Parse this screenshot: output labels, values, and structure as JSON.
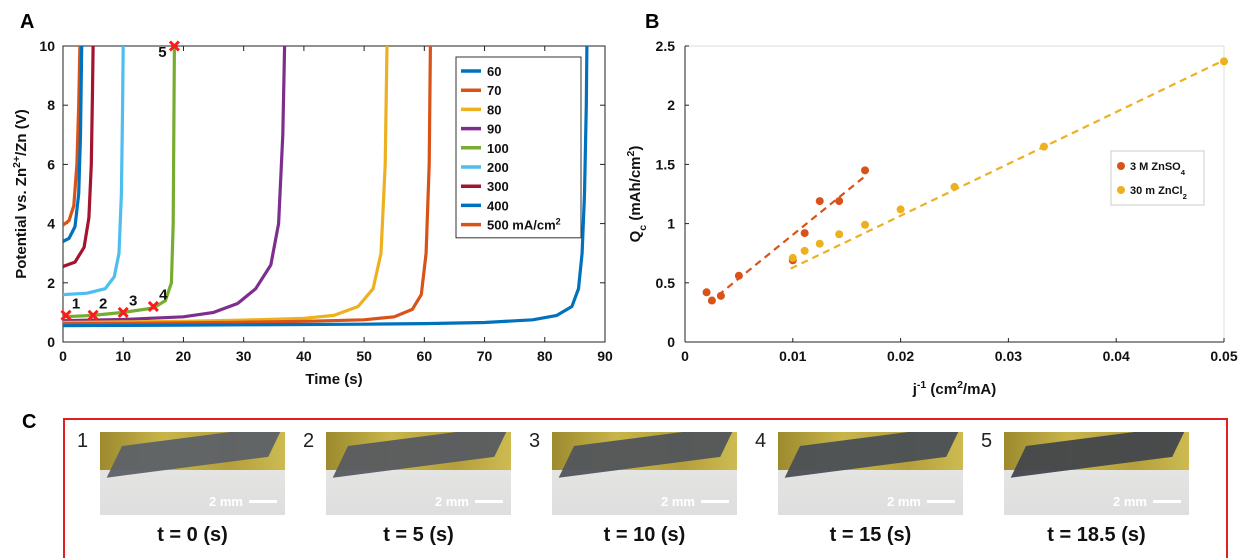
{
  "panel_labels": [
    "A",
    "B",
    "C"
  ],
  "chart_data": [
    {
      "type": "line",
      "panel": "A",
      "xlabel": "Time (s)",
      "ylabel_parts": [
        "Potential vs. Zn",
        "2+",
        "/Zn (V)"
      ],
      "xlim": [
        0,
        90
      ],
      "ylim": [
        0,
        10
      ],
      "xticks": [
        0,
        10,
        20,
        30,
        40,
        50,
        60,
        70,
        80,
        90
      ],
      "yticks": [
        0,
        2,
        4,
        6,
        8,
        10
      ],
      "grid": false,
      "legend_position": "top-right",
      "legend_unit_parts": [
        "500 mA/cm",
        "2"
      ],
      "series": [
        {
          "name": "60",
          "color": "#0072BD",
          "points": [
            [
              0,
              0.55
            ],
            [
              10,
              0.56
            ],
            [
              20,
              0.57
            ],
            [
              30,
              0.58
            ],
            [
              40,
              0.59
            ],
            [
              50,
              0.6
            ],
            [
              60,
              0.62
            ],
            [
              70,
              0.66
            ],
            [
              78,
              0.75
            ],
            [
              82,
              0.9
            ],
            [
              84.5,
              1.2
            ],
            [
              85.6,
              1.8
            ],
            [
              86.2,
              3
            ],
            [
              86.6,
              5
            ],
            [
              86.9,
              8
            ],
            [
              87,
              10
            ]
          ]
        },
        {
          "name": "70",
          "color": "#D95319",
          "points": [
            [
              0,
              0.62
            ],
            [
              10,
              0.63
            ],
            [
              20,
              0.65
            ],
            [
              30,
              0.67
            ],
            [
              40,
              0.7
            ],
            [
              50,
              0.75
            ],
            [
              55,
              0.85
            ],
            [
              58,
              1.1
            ],
            [
              59.5,
              1.6
            ],
            [
              60.3,
              3
            ],
            [
              60.8,
              6
            ],
            [
              61,
              10
            ]
          ]
        },
        {
          "name": "80",
          "color": "#EDB120",
          "points": [
            [
              0,
              0.66
            ],
            [
              10,
              0.68
            ],
            [
              20,
              0.7
            ],
            [
              30,
              0.74
            ],
            [
              40,
              0.8
            ],
            [
              45,
              0.9
            ],
            [
              49,
              1.2
            ],
            [
              51.5,
              1.8
            ],
            [
              52.8,
              3
            ],
            [
              53.5,
              6
            ],
            [
              53.8,
              10
            ]
          ]
        },
        {
          "name": "90",
          "color": "#7E2F8E",
          "points": [
            [
              0,
              0.72
            ],
            [
              10,
              0.76
            ],
            [
              20,
              0.85
            ],
            [
              25,
              1
            ],
            [
              29,
              1.3
            ],
            [
              32,
              1.8
            ],
            [
              34.5,
              2.6
            ],
            [
              35.8,
              4
            ],
            [
              36.5,
              7
            ],
            [
              36.8,
              10
            ]
          ]
        },
        {
          "name": "100",
          "color": "#77AC30",
          "points": [
            [
              0,
              0.85
            ],
            [
              5,
              0.9
            ],
            [
              10,
              1.0
            ],
            [
              15,
              1.15
            ],
            [
              17,
              1.4
            ],
            [
              18,
              2
            ],
            [
              18.3,
              4
            ],
            [
              18.5,
              10
            ]
          ]
        },
        {
          "name": "200",
          "color": "#4DBEEE",
          "points": [
            [
              0,
              1.6
            ],
            [
              4,
              1.65
            ],
            [
              7,
              1.8
            ],
            [
              8.5,
              2.2
            ],
            [
              9.3,
              3
            ],
            [
              9.7,
              5
            ],
            [
              9.9,
              8
            ],
            [
              10,
              10
            ]
          ]
        },
        {
          "name": "300",
          "color": "#A2142F",
          "points": [
            [
              0,
              2.55
            ],
            [
              2,
              2.7
            ],
            [
              3.5,
              3.2
            ],
            [
              4.3,
              4.2
            ],
            [
              4.7,
              6
            ],
            [
              4.9,
              8.5
            ],
            [
              5,
              10
            ]
          ]
        },
        {
          "name": "400",
          "color": "#0072BD",
          "points": [
            [
              0,
              3.4
            ],
            [
              1,
              3.5
            ],
            [
              2,
              3.9
            ],
            [
              2.6,
              5
            ],
            [
              2.9,
              7
            ],
            [
              3.1,
              10
            ]
          ]
        },
        {
          "name": "500",
          "color": "#D95319",
          "points": [
            [
              0,
              3.95
            ],
            [
              1,
              4.1
            ],
            [
              1.8,
              4.6
            ],
            [
              2.3,
              6
            ],
            [
              2.6,
              8
            ],
            [
              2.8,
              10
            ]
          ]
        }
      ],
      "markers": [
        {
          "label": "1",
          "x": 0.5,
          "y": 0.9
        },
        {
          "label": "2",
          "x": 5,
          "y": 0.9
        },
        {
          "label": "3",
          "x": 10,
          "y": 1.0
        },
        {
          "label": "4",
          "x": 15,
          "y": 1.2
        },
        {
          "label": "5",
          "x": 18.5,
          "y": 10
        }
      ]
    },
    {
      "type": "scatter",
      "panel": "B",
      "xlabel_parts": [
        "j",
        "-1",
        " (cm",
        "2",
        "/mA)"
      ],
      "ylabel_parts": [
        "Q",
        "c",
        " (mAh/cm",
        "2",
        ")"
      ],
      "xlim": [
        0,
        0.05
      ],
      "ylim": [
        0,
        2.5
      ],
      "xticks": [
        0,
        0.01,
        0.02,
        0.03,
        0.04,
        0.05
      ],
      "xtick_labels": [
        "0",
        "0.01",
        "0.02",
        "0.03",
        "0.04",
        "0.05"
      ],
      "yticks": [
        0,
        0.5,
        1,
        1.5,
        2,
        2.5
      ],
      "ytick_labels": [
        "0",
        "0.5",
        "1",
        "1.5",
        "2",
        "2.5"
      ],
      "grid": false,
      "legend_position": "right",
      "series": [
        {
          "name_parts": [
            "3 M ZnSO",
            "4"
          ],
          "color": "#D95319",
          "x": [
            0.002,
            0.0025,
            0.00333,
            0.005,
            0.01,
            0.0111,
            0.0125,
            0.0143,
            0.0167
          ],
          "y": [
            0.42,
            0.35,
            0.39,
            0.56,
            0.69,
            0.92,
            1.19,
            1.19,
            1.45
          ],
          "fit": [
            [
              0.0022,
              0.33
            ],
            [
              0.0167,
              1.4
            ]
          ]
        },
        {
          "name_parts": [
            "30 m ZnCl",
            "2"
          ],
          "color": "#EDB120",
          "x": [
            0.01,
            0.0111,
            0.0125,
            0.0143,
            0.0167,
            0.02,
            0.025,
            0.0333,
            0.05
          ],
          "y": [
            0.71,
            0.77,
            0.83,
            0.91,
            0.99,
            1.12,
            1.31,
            1.65,
            2.37
          ],
          "fit": [
            [
              0.0098,
              0.62
            ],
            [
              0.05,
              2.38
            ]
          ]
        }
      ]
    }
  ],
  "panel_c": {
    "items": [
      {
        "number": "1",
        "time": "t = 0 (s)",
        "scale": "2 mm",
        "darkness": 0.45
      },
      {
        "number": "2",
        "time": "t = 5 (s)",
        "scale": "2 mm",
        "darkness": 0.55
      },
      {
        "number": "3",
        "time": "t = 10 (s)",
        "scale": "2 mm",
        "darkness": 0.65
      },
      {
        "number": "4",
        "time": "t = 15 (s)",
        "scale": "2 mm",
        "darkness": 0.75
      },
      {
        "number": "5",
        "time": "t = 18.5 (s)",
        "scale": "2 mm",
        "darkness": 0.9
      }
    ]
  }
}
